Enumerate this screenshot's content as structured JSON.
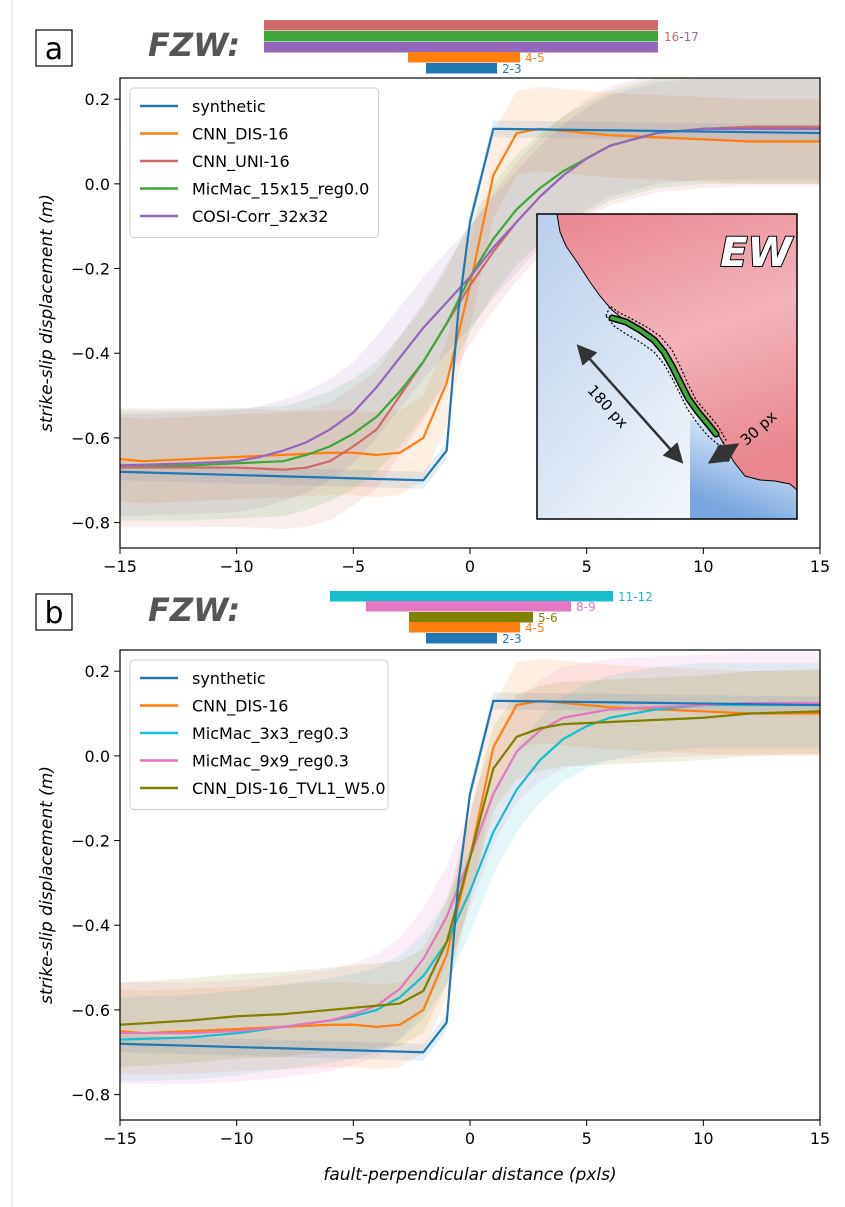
{
  "chart_data": [
    {
      "panel": "a",
      "type": "line",
      "fzw_label": "FZW:",
      "fzw_bars": [
        {
          "series": "CNN_UNI-16",
          "color": "#cd6b6b",
          "label": ""
        },
        {
          "series": "MicMac_15x15_reg0.0",
          "color": "#3fa63a",
          "label": ""
        },
        {
          "series": "COSI-Corr_32x32",
          "color": "#9467bd",
          "label": ""
        },
        {
          "series": "CNN_DIS-16",
          "color": "#ff7f0e",
          "label": "4-5"
        },
        {
          "series": "synthetic",
          "color": "#1f77b4",
          "label": "2-3"
        }
      ],
      "fzw_top_label_parts": [
        {
          "text": "16",
          "color": "#cd6b6b"
        },
        {
          "text": "-",
          "color": "#555555"
        },
        {
          "text": "17",
          "color": "#9467bd"
        }
      ],
      "xlabel": "",
      "ylabel": "strike-slip displacement (m)",
      "xlim": [
        -15,
        15
      ],
      "ylim": [
        -0.86,
        0.25
      ],
      "xticks": [
        -15,
        -10,
        -5,
        0,
        5,
        10,
        15
      ],
      "yticks": [
        0.2,
        0.0,
        -0.2,
        -0.4,
        -0.6,
        -0.8
      ],
      "xtick_labels": [
        "−15",
        "−10",
        "−5",
        "0",
        "5",
        "10",
        "15"
      ],
      "ytick_labels": [
        "0.2",
        "0.0",
        "−0.2",
        "−0.4",
        "−0.6",
        "−0.8"
      ],
      "legend_position": "upper-left",
      "series": [
        {
          "name": "synthetic",
          "color": "#1f77b4",
          "x": [
            -15,
            -2,
            -1,
            -0.5,
            0,
            1,
            15
          ],
          "y": [
            -0.68,
            -0.7,
            -0.63,
            -0.3,
            -0.09,
            0.13,
            0.12
          ],
          "band": 0.02
        },
        {
          "name": "CNN_DIS-16",
          "color": "#ff7f0e",
          "x": [
            -15,
            -14,
            -12,
            -10,
            -8,
            -6,
            -5,
            -4,
            -3,
            -2,
            -1,
            0,
            1,
            2,
            3,
            4,
            6,
            8,
            10,
            12,
            15
          ],
          "y": [
            -0.65,
            -0.655,
            -0.65,
            -0.645,
            -0.64,
            -0.635,
            -0.635,
            -0.64,
            -0.635,
            -0.6,
            -0.47,
            -0.24,
            0.02,
            0.12,
            0.13,
            0.125,
            0.115,
            0.11,
            0.105,
            0.1,
            0.1
          ],
          "band": 0.1
        },
        {
          "name": "CNN_UNI-16",
          "color": "#cd6b6b",
          "x": [
            -15,
            -12,
            -10,
            -8,
            -7,
            -6,
            -5,
            -4,
            -3,
            -2,
            -1,
            0,
            1,
            2,
            3,
            4,
            5,
            6,
            8,
            10,
            12,
            15
          ],
          "y": [
            -0.67,
            -0.67,
            -0.67,
            -0.675,
            -0.67,
            -0.655,
            -0.62,
            -0.58,
            -0.5,
            -0.42,
            -0.33,
            -0.24,
            -0.16,
            -0.09,
            -0.03,
            0.02,
            0.06,
            0.09,
            0.12,
            0.13,
            0.135,
            0.135
          ],
          "band": 0.14
        },
        {
          "name": "MicMac_15x15_reg0.0",
          "color": "#3fa63a",
          "x": [
            -15,
            -12,
            -10,
            -8,
            -7,
            -6,
            -5,
            -4,
            -3,
            -2,
            -1,
            0,
            1,
            2,
            3,
            4,
            5,
            6,
            8,
            10,
            12,
            15
          ],
          "y": [
            -0.665,
            -0.665,
            -0.66,
            -0.655,
            -0.64,
            -0.62,
            -0.59,
            -0.55,
            -0.49,
            -0.42,
            -0.33,
            -0.22,
            -0.13,
            -0.06,
            -0.01,
            0.03,
            0.06,
            0.09,
            0.12,
            0.13,
            0.13,
            0.13
          ],
          "band": 0.13
        },
        {
          "name": "COSI-Corr_32x32",
          "color": "#9467bd",
          "x": [
            -15,
            -12,
            -10,
            -9,
            -8,
            -7,
            -6,
            -5,
            -4,
            -3,
            -2,
            -1,
            0,
            1,
            2,
            3,
            4,
            5,
            6,
            8,
            10,
            12,
            15
          ],
          "y": [
            -0.665,
            -0.66,
            -0.655,
            -0.645,
            -0.63,
            -0.61,
            -0.58,
            -0.54,
            -0.48,
            -0.41,
            -0.34,
            -0.28,
            -0.22,
            -0.15,
            -0.09,
            -0.03,
            0.02,
            0.06,
            0.09,
            0.12,
            0.13,
            0.13,
            0.13
          ],
          "band": 0.12
        }
      ],
      "inset": {
        "title": "EW",
        "length_label": "180 px",
        "width_label": "30 px"
      }
    },
    {
      "panel": "b",
      "type": "line",
      "fzw_label": "FZW:",
      "fzw_bars": [
        {
          "series": "MicMac_3x3_reg0.3",
          "color": "#17becf",
          "label": "11-12"
        },
        {
          "series": "MicMac_9x9_reg0.3",
          "color": "#e377c2",
          "label": "8-9"
        },
        {
          "series": "CNN_DIS-16_TVL1_W5.0",
          "color": "#808000",
          "label": "5-6"
        },
        {
          "series": "CNN_DIS-16",
          "color": "#ff7f0e",
          "label": "4-5"
        },
        {
          "series": "synthetic",
          "color": "#1f77b4",
          "label": "2-3"
        }
      ],
      "xlabel": "fault-perpendicular distance (pxls)",
      "ylabel": "strike-slip displacement (m)",
      "xlim": [
        -15,
        15
      ],
      "ylim": [
        -0.86,
        0.25
      ],
      "xticks": [
        -15,
        -10,
        -5,
        0,
        5,
        10,
        15
      ],
      "yticks": [
        0.2,
        0.0,
        -0.2,
        -0.4,
        -0.6,
        -0.8
      ],
      "xtick_labels": [
        "−15",
        "−10",
        "−5",
        "0",
        "5",
        "10",
        "15"
      ],
      "ytick_labels": [
        "0.2",
        "0.0",
        "−0.2",
        "−0.4",
        "−0.6",
        "−0.8"
      ],
      "legend_position": "upper-left",
      "series": [
        {
          "name": "synthetic",
          "color": "#1f77b4",
          "x": [
            -15,
            -2,
            -1,
            -0.5,
            0,
            1,
            15
          ],
          "y": [
            -0.68,
            -0.7,
            -0.63,
            -0.3,
            -0.09,
            0.13,
            0.12
          ],
          "band": 0.02
        },
        {
          "name": "CNN_DIS-16",
          "color": "#ff7f0e",
          "x": [
            -15,
            -14,
            -12,
            -10,
            -8,
            -6,
            -5,
            -4,
            -3,
            -2,
            -1,
            0,
            1,
            2,
            3,
            4,
            6,
            8,
            10,
            12,
            15
          ],
          "y": [
            -0.65,
            -0.655,
            -0.65,
            -0.645,
            -0.64,
            -0.635,
            -0.635,
            -0.64,
            -0.635,
            -0.6,
            -0.47,
            -0.24,
            0.02,
            0.12,
            0.13,
            0.125,
            0.115,
            0.11,
            0.105,
            0.1,
            0.1
          ],
          "band": 0.1
        },
        {
          "name": "MicMac_3x3_reg0.3",
          "color": "#17becf",
          "x": [
            -15,
            -12,
            -10,
            -8,
            -6,
            -5,
            -4,
            -3,
            -2,
            -1,
            0,
            1,
            2,
            3,
            4,
            5,
            6,
            8,
            10,
            12,
            15
          ],
          "y": [
            -0.67,
            -0.665,
            -0.655,
            -0.64,
            -0.625,
            -0.615,
            -0.6,
            -0.57,
            -0.52,
            -0.44,
            -0.32,
            -0.18,
            -0.08,
            -0.01,
            0.04,
            0.07,
            0.09,
            0.11,
            0.12,
            0.12,
            0.12
          ],
          "band": 0.1
        },
        {
          "name": "MicMac_9x9_reg0.3",
          "color": "#e377c2",
          "x": [
            -15,
            -12,
            -10,
            -8,
            -6,
            -5,
            -4,
            -3,
            -2,
            -1,
            0,
            1,
            2,
            3,
            4,
            5,
            6,
            8,
            10,
            12,
            15
          ],
          "y": [
            -0.655,
            -0.655,
            -0.65,
            -0.64,
            -0.625,
            -0.61,
            -0.59,
            -0.55,
            -0.48,
            -0.38,
            -0.24,
            -0.09,
            0.01,
            0.06,
            0.09,
            0.1,
            0.11,
            0.115,
            0.12,
            0.125,
            0.125
          ],
          "band": 0.12
        },
        {
          "name": "CNN_DIS-16_TVL1_W5.0",
          "color": "#808000",
          "x": [
            -15,
            -12,
            -10,
            -8,
            -6,
            -5,
            -4,
            -3,
            -2,
            -1,
            0,
            1,
            2,
            3,
            4,
            6,
            8,
            10,
            12,
            15
          ],
          "y": [
            -0.635,
            -0.625,
            -0.615,
            -0.61,
            -0.6,
            -0.595,
            -0.59,
            -0.585,
            -0.555,
            -0.44,
            -0.24,
            -0.03,
            0.045,
            0.065,
            0.075,
            0.08,
            0.085,
            0.09,
            0.1,
            0.105
          ],
          "band": 0.1
        }
      ]
    }
  ]
}
